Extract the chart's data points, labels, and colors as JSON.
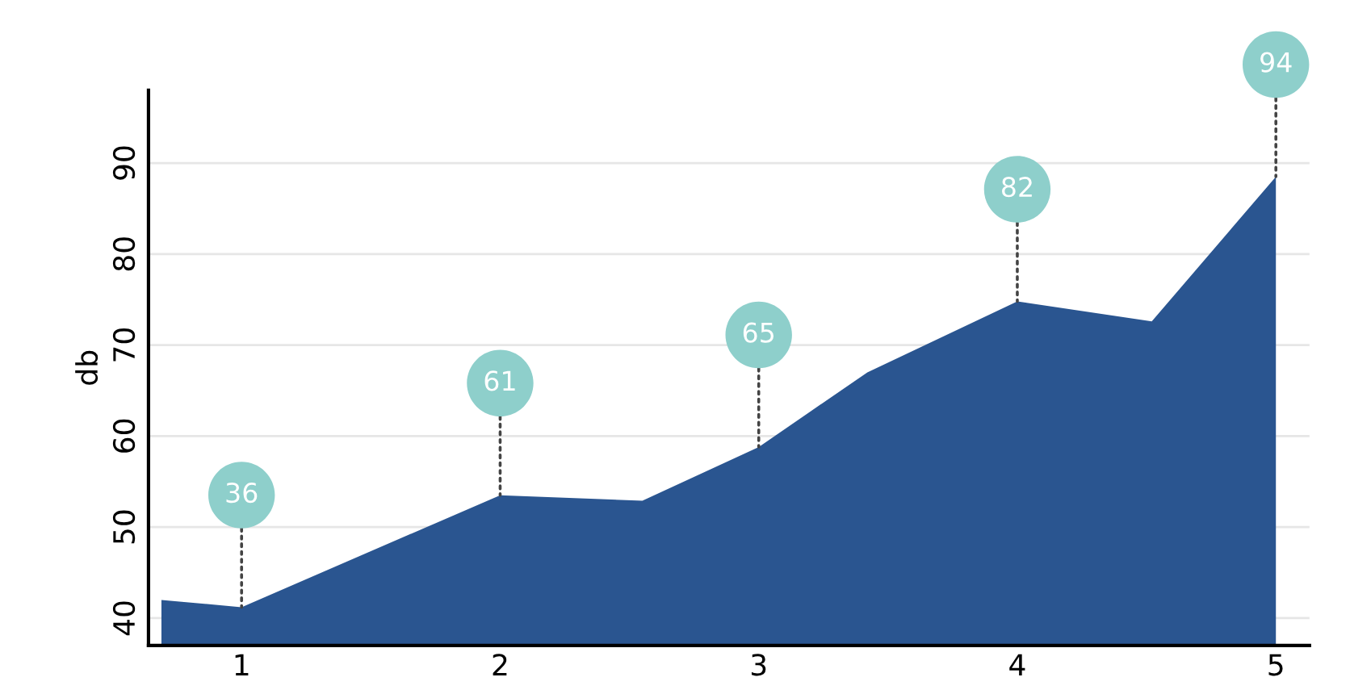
{
  "chart_data": {
    "type": "area",
    "ylabel": "db",
    "series": [
      {
        "color": "#2a5590",
        "x": [
          0.69,
          1,
          2,
          2.55,
          3,
          3.42,
          4,
          4.52,
          5
        ],
        "values": [
          42.0,
          41.2,
          53.5,
          52.9,
          58.8,
          67.0,
          74.8,
          72.6,
          88.5
        ]
      }
    ],
    "xlim": [
      0.64,
      5.13
    ],
    "xticks": [
      1,
      2,
      3,
      4,
      5
    ],
    "ylim": [
      37,
      98
    ],
    "yticks": [
      40,
      50,
      60,
      70,
      80,
      90
    ],
    "grid": "y",
    "annotations": [
      {
        "text": "36",
        "x": 1,
        "y": 41.2
      },
      {
        "text": "61",
        "x": 2,
        "y": 53.5
      },
      {
        "text": "65",
        "x": 3,
        "y": 58.8
      },
      {
        "text": "82",
        "x": 4,
        "y": 74.8
      },
      {
        "text": "94",
        "x": 5,
        "y": 88.5
      }
    ]
  }
}
